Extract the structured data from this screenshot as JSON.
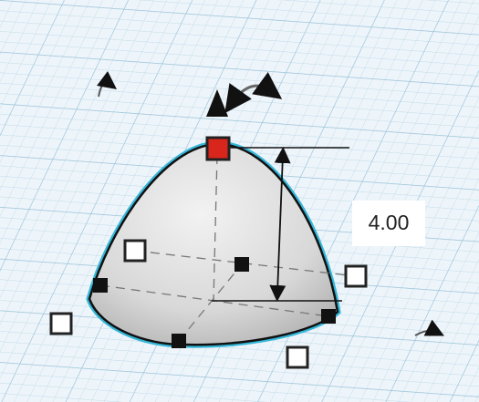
{
  "dimension": {
    "label": "4.00"
  }
}
